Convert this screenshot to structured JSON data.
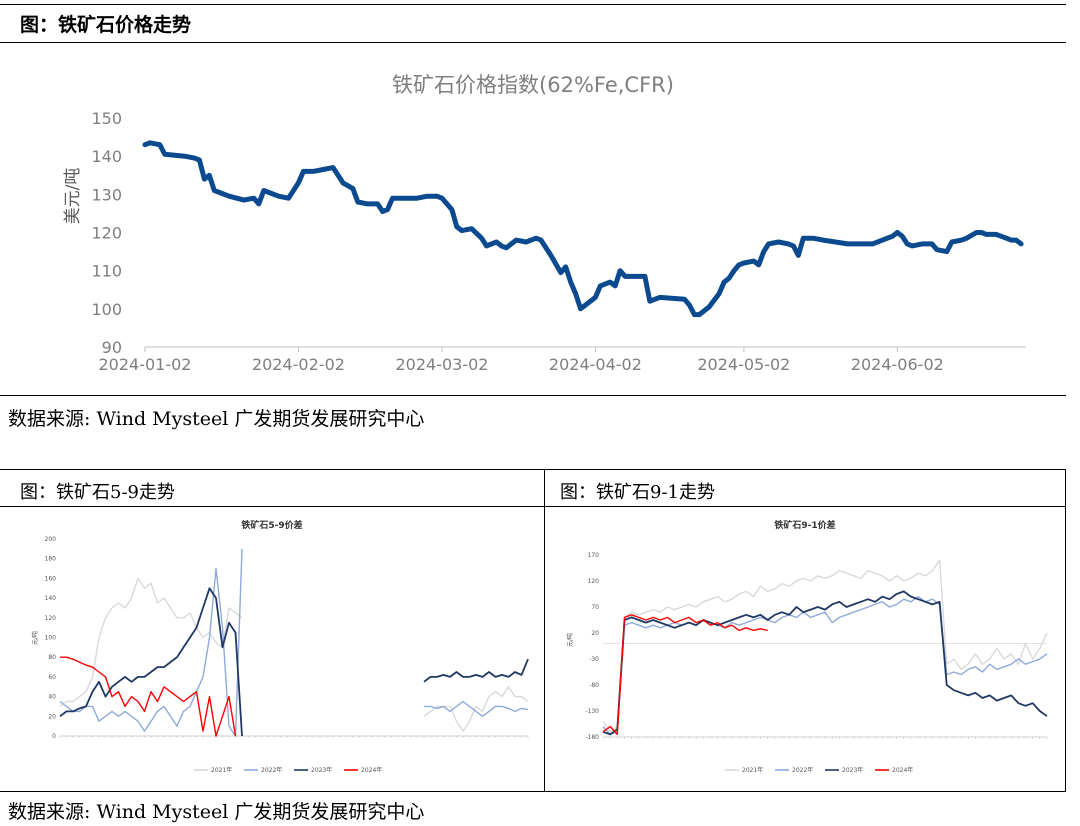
{
  "header": {
    "title": "图：铁矿石价格走势",
    "source": "数据来源: Wind   Mysteel  广发期货发展研究中心"
  },
  "lower": {
    "left_caption": "图：铁矿石5-9走势",
    "right_caption": "图：铁矿石9-1走势",
    "source": "数据来源: Wind   Mysteel  广发期货发展研究中心"
  },
  "chart_data": [
    {
      "id": "main",
      "type": "line",
      "title": "铁矿石价格指数(62%Fe,CFR)",
      "ylabel": "美元/吨",
      "xlabel": "",
      "ylim": [
        90,
        150
      ],
      "yticks": [
        90,
        100,
        110,
        120,
        130,
        140,
        150
      ],
      "xlim": [
        "2024-01-02",
        "2024-06-28"
      ],
      "xticks": [
        "2024-01-02",
        "2024-02-02",
        "2024-03-02",
        "2024-04-02",
        "2024-05-02",
        "2024-06-02"
      ],
      "grid": false,
      "color": "#0b4a8f",
      "series": [
        {
          "points": [
            [
              "2024-01-02",
              143
            ],
            [
              "2024-01-03",
              143.5
            ],
            [
              "2024-01-05",
              143
            ],
            [
              "2024-01-06",
              140.5
            ],
            [
              "2024-01-10",
              140
            ],
            [
              "2024-01-12",
              139.5
            ],
            [
              "2024-01-13",
              139
            ],
            [
              "2024-01-14",
              134
            ],
            [
              "2024-01-15",
              135
            ],
            [
              "2024-01-16",
              131
            ],
            [
              "2024-01-19",
              129.5
            ],
            [
              "2024-01-22",
              128.5
            ],
            [
              "2024-01-24",
              129
            ],
            [
              "2024-01-25",
              127.5
            ],
            [
              "2024-01-26",
              131
            ],
            [
              "2024-01-29",
              129.5
            ],
            [
              "2024-01-31",
              129
            ],
            [
              "2024-02-02",
              133
            ],
            [
              "2024-02-03",
              136
            ],
            [
              "2024-02-05",
              136
            ],
            [
              "2024-02-07",
              136.5
            ],
            [
              "2024-02-09",
              137
            ],
            [
              "2024-02-11",
              133
            ],
            [
              "2024-02-13",
              131.5
            ],
            [
              "2024-02-14",
              128
            ],
            [
              "2024-02-16",
              127.5
            ],
            [
              "2024-02-18",
              127.5
            ],
            [
              "2024-02-19",
              125.5
            ],
            [
              "2024-02-20",
              126
            ],
            [
              "2024-02-21",
              129
            ],
            [
              "2024-02-26",
              129
            ],
            [
              "2024-02-28",
              129.5
            ],
            [
              "2024-03-01",
              129.5
            ],
            [
              "2024-03-02",
              129
            ],
            [
              "2024-03-04",
              126
            ],
            [
              "2024-03-05",
              121.5
            ],
            [
              "2024-03-06",
              120.5
            ],
            [
              "2024-03-08",
              121
            ],
            [
              "2024-03-10",
              118.5
            ],
            [
              "2024-03-11",
              116.5
            ],
            [
              "2024-03-12",
              117
            ],
            [
              "2024-03-13",
              117.5
            ],
            [
              "2024-03-14",
              116.5
            ],
            [
              "2024-03-15",
              116
            ],
            [
              "2024-03-17",
              118
            ],
            [
              "2024-03-19",
              117.5
            ],
            [
              "2024-03-21",
              118.5
            ],
            [
              "2024-03-22",
              118
            ],
            [
              "2024-03-24",
              114
            ],
            [
              "2024-03-26",
              109.5
            ],
            [
              "2024-03-27",
              111
            ],
            [
              "2024-03-28",
              107
            ],
            [
              "2024-03-29",
              104
            ],
            [
              "2024-03-30",
              100
            ],
            [
              "2024-04-02",
              103
            ],
            [
              "2024-04-03",
              106
            ],
            [
              "2024-04-05",
              107
            ],
            [
              "2024-04-06",
              106
            ],
            [
              "2024-04-07",
              110
            ],
            [
              "2024-04-08",
              108.5
            ],
            [
              "2024-04-10",
              108.5
            ],
            [
              "2024-04-12",
              108.5
            ],
            [
              "2024-04-13",
              102
            ],
            [
              "2024-04-15",
              103
            ],
            [
              "2024-04-20",
              102.5
            ],
            [
              "2024-04-21",
              101
            ],
            [
              "2024-04-22",
              98.5
            ],
            [
              "2024-04-23",
              98.5
            ],
            [
              "2024-04-25",
              100.5
            ],
            [
              "2024-04-27",
              104
            ],
            [
              "2024-04-28",
              107
            ],
            [
              "2024-04-29",
              108
            ],
            [
              "2024-04-30",
              110
            ],
            [
              "2024-05-01",
              111.5
            ],
            [
              "2024-05-02",
              112
            ],
            [
              "2024-05-04",
              112.5
            ],
            [
              "2024-05-05",
              111.5
            ],
            [
              "2024-05-06",
              115
            ],
            [
              "2024-05-07",
              117
            ],
            [
              "2024-05-09",
              117.5
            ],
            [
              "2024-05-11",
              117
            ],
            [
              "2024-05-12",
              116.5
            ],
            [
              "2024-05-13",
              114
            ],
            [
              "2024-05-14",
              118.5
            ],
            [
              "2024-05-16",
              118.5
            ],
            [
              "2024-05-18",
              118
            ],
            [
              "2024-05-23",
              117
            ],
            [
              "2024-05-28",
              117
            ],
            [
              "2024-05-30",
              118
            ],
            [
              "2024-06-01",
              119
            ],
            [
              "2024-06-02",
              120
            ],
            [
              "2024-06-03",
              119
            ],
            [
              "2024-06-04",
              117
            ],
            [
              "2024-06-05",
              116.5
            ],
            [
              "2024-06-07",
              117
            ],
            [
              "2024-06-09",
              117
            ],
            [
              "2024-06-10",
              115.5
            ],
            [
              "2024-06-12",
              115
            ],
            [
              "2024-06-13",
              117.5
            ],
            [
              "2024-06-15",
              118
            ],
            [
              "2024-06-16",
              118.5
            ],
            [
              "2024-06-18",
              120
            ],
            [
              "2024-06-19",
              120
            ],
            [
              "2024-06-20",
              119.5
            ],
            [
              "2024-06-22",
              119.5
            ],
            [
              "2024-06-23",
              119
            ],
            [
              "2024-06-25",
              118
            ],
            [
              "2024-06-26",
              118
            ],
            [
              "2024-06-27",
              117
            ]
          ]
        }
      ]
    },
    {
      "id": "spread59",
      "type": "line",
      "title": "铁矿石5-9价差",
      "ylabel": "元/吨",
      "ylim": [
        0,
        200
      ],
      "yticks": [
        0,
        20,
        40,
        60,
        80,
        100,
        120,
        140,
        160,
        180,
        200
      ],
      "legend_position": "bottom",
      "series": [
        {
          "name": "2021年",
          "color": "#d9d9d9",
          "values": [
            30,
            35,
            35,
            40,
            45,
            60,
            100,
            120,
            130,
            135,
            130,
            140,
            160,
            150,
            155,
            135,
            140,
            130,
            120,
            120,
            125,
            110,
            100,
            105,
            95,
            90,
            130,
            125,
            120,
            null,
            null,
            null,
            null,
            null,
            null,
            null,
            null,
            null,
            null,
            null,
            null,
            null,
            null,
            null,
            null,
            null,
            null,
            null,
            null,
            null,
            null,
            null,
            null,
            null,
            null,
            null,
            20,
            25,
            30,
            30,
            30,
            15,
            5,
            15,
            30,
            25,
            40,
            45,
            40,
            50,
            40,
            40,
            35
          ]
        },
        {
          "name": "2022年",
          "color": "#8eaadb",
          "values": [
            35,
            30,
            25,
            25,
            30,
            30,
            15,
            20,
            25,
            20,
            25,
            20,
            15,
            5,
            15,
            25,
            30,
            20,
            10,
            25,
            30,
            45,
            60,
            100,
            170,
            110,
            10,
            0,
            190,
            null,
            null,
            null,
            null,
            null,
            null,
            null,
            null,
            null,
            null,
            null,
            null,
            null,
            null,
            null,
            null,
            null,
            null,
            null,
            null,
            null,
            null,
            null,
            null,
            null,
            null,
            null,
            30,
            30,
            28,
            30,
            25,
            30,
            35,
            30,
            25,
            20,
            25,
            30,
            30,
            28,
            25,
            28,
            27
          ]
        },
        {
          "name": "2023年",
          "color": "#1f3864",
          "values": [
            20,
            25,
            25,
            28,
            30,
            45,
            55,
            40,
            50,
            55,
            60,
            55,
            60,
            60,
            65,
            70,
            70,
            75,
            80,
            90,
            100,
            110,
            130,
            150,
            140,
            90,
            115,
            105,
            0,
            null,
            null,
            null,
            null,
            null,
            null,
            null,
            null,
            null,
            null,
            null,
            null,
            null,
            null,
            null,
            null,
            null,
            null,
            null,
            null,
            null,
            null,
            null,
            null,
            null,
            null,
            null,
            55,
            60,
            60,
            62,
            60,
            65,
            60,
            60,
            62,
            60,
            65,
            60,
            62,
            60,
            65,
            62,
            78
          ]
        },
        {
          "name": "2024年",
          "color": "#ff0000",
          "values": [
            80,
            80,
            78,
            75,
            72,
            70,
            65,
            60,
            40,
            45,
            30,
            40,
            35,
            25,
            45,
            35,
            50,
            45,
            40,
            35,
            40,
            45,
            5,
            40,
            0,
            20,
            40,
            0,
            null,
            null,
            null,
            null,
            null,
            null,
            null,
            null,
            null,
            null,
            null,
            null,
            null,
            null,
            null,
            null,
            null,
            null,
            null,
            null,
            null,
            null,
            null,
            null,
            null,
            null,
            null,
            null,
            null,
            null,
            null,
            null,
            null,
            null,
            null,
            null,
            null,
            null,
            null,
            null,
            null,
            null,
            null,
            null,
            null
          ]
        }
      ]
    },
    {
      "id": "spread91",
      "type": "line",
      "title": "铁矿石9-1价差",
      "ylabel": "元/吨",
      "ylim": [
        -180,
        170
      ],
      "yticks": [
        -180,
        -130,
        -80,
        -30,
        20,
        70,
        120,
        170
      ],
      "legend_position": "bottom",
      "series": [
        {
          "name": "2021年",
          "color": "#d9d9d9",
          "values": [
            -150,
            -170,
            -160,
            50,
            60,
            55,
            60,
            65,
            60,
            70,
            65,
            70,
            75,
            70,
            80,
            85,
            90,
            80,
            85,
            95,
            100,
            90,
            110,
            100,
            105,
            115,
            110,
            120,
            125,
            120,
            130,
            125,
            130,
            140,
            135,
            130,
            125,
            140,
            135,
            130,
            120,
            130,
            120,
            125,
            135,
            130,
            140,
            160,
            -40,
            -30,
            -50,
            -40,
            -20,
            -40,
            -30,
            -10,
            -30,
            -20,
            -40,
            0,
            -30,
            -10,
            20
          ]
        },
        {
          "name": "2022年",
          "color": "#8eaadb",
          "values": [
            -160,
            -175,
            -170,
            35,
            40,
            35,
            30,
            35,
            30,
            35,
            40,
            35,
            40,
            35,
            45,
            40,
            35,
            30,
            40,
            35,
            40,
            45,
            50,
            45,
            40,
            50,
            55,
            50,
            60,
            50,
            55,
            60,
            40,
            50,
            55,
            60,
            65,
            70,
            75,
            80,
            70,
            75,
            85,
            80,
            90,
            80,
            85,
            75,
            -60,
            -55,
            -60,
            -50,
            -45,
            -55,
            -40,
            -50,
            -45,
            -40,
            -30,
            -40,
            -35,
            -30,
            -20
          ]
        },
        {
          "name": "2023年",
          "color": "#1f3864",
          "values": [
            -170,
            -175,
            -165,
            45,
            50,
            45,
            40,
            45,
            40,
            35,
            30,
            35,
            40,
            35,
            45,
            40,
            35,
            40,
            45,
            50,
            55,
            50,
            55,
            45,
            55,
            60,
            55,
            70,
            60,
            65,
            70,
            65,
            75,
            80,
            70,
            75,
            80,
            85,
            80,
            90,
            85,
            95,
            100,
            90,
            85,
            80,
            75,
            80,
            -80,
            -90,
            -95,
            -100,
            -95,
            -105,
            -100,
            -110,
            -105,
            -100,
            -115,
            -120,
            -115,
            -130,
            -140
          ]
        },
        {
          "name": "2024年",
          "color": "#ff0000",
          "values": [
            -170,
            -160,
            -175,
            50,
            55,
            50,
            45,
            50,
            45,
            50,
            40,
            45,
            50,
            40,
            45,
            35,
            40,
            30,
            35,
            25,
            30,
            25,
            28,
            25,
            null,
            null,
            null,
            null,
            null,
            null,
            null,
            null,
            null,
            null,
            null,
            null,
            null,
            null,
            null,
            null,
            null,
            null,
            null,
            null,
            null,
            null,
            null,
            null,
            null,
            null,
            null,
            null,
            null,
            null,
            null,
            null,
            null,
            null,
            null,
            null,
            null,
            null,
            null
          ]
        }
      ]
    }
  ]
}
